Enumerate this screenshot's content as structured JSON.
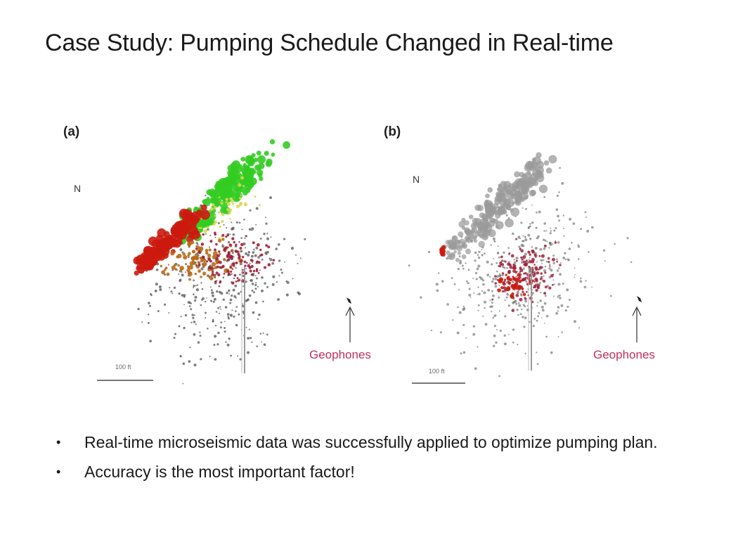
{
  "slide": {
    "title": "Case Study: Pumping Schedule Changed in Real-time"
  },
  "panels": [
    {
      "label": "(a)",
      "north": "N",
      "geophones_label": "Geophones",
      "scale_bar": "100 ft"
    },
    {
      "label": "(b)",
      "north": "N",
      "geophones_label": "Geophones",
      "scale_bar": "100 ft"
    }
  ],
  "bullets": [
    "Real-time microseismic data was successfully applied to optimize pumping plan.",
    "Accuracy is the most important factor!"
  ],
  "colors": {
    "stage_1": "#cc1a10",
    "stage_2": "#b86a1a",
    "stage_3": "#33cc22",
    "stage_4": "#d8d84a",
    "stage_5": "#a0203a",
    "background_events": "#555555",
    "gray_events": "#9a9a9a",
    "geophones_label": "#c0305a"
  }
}
